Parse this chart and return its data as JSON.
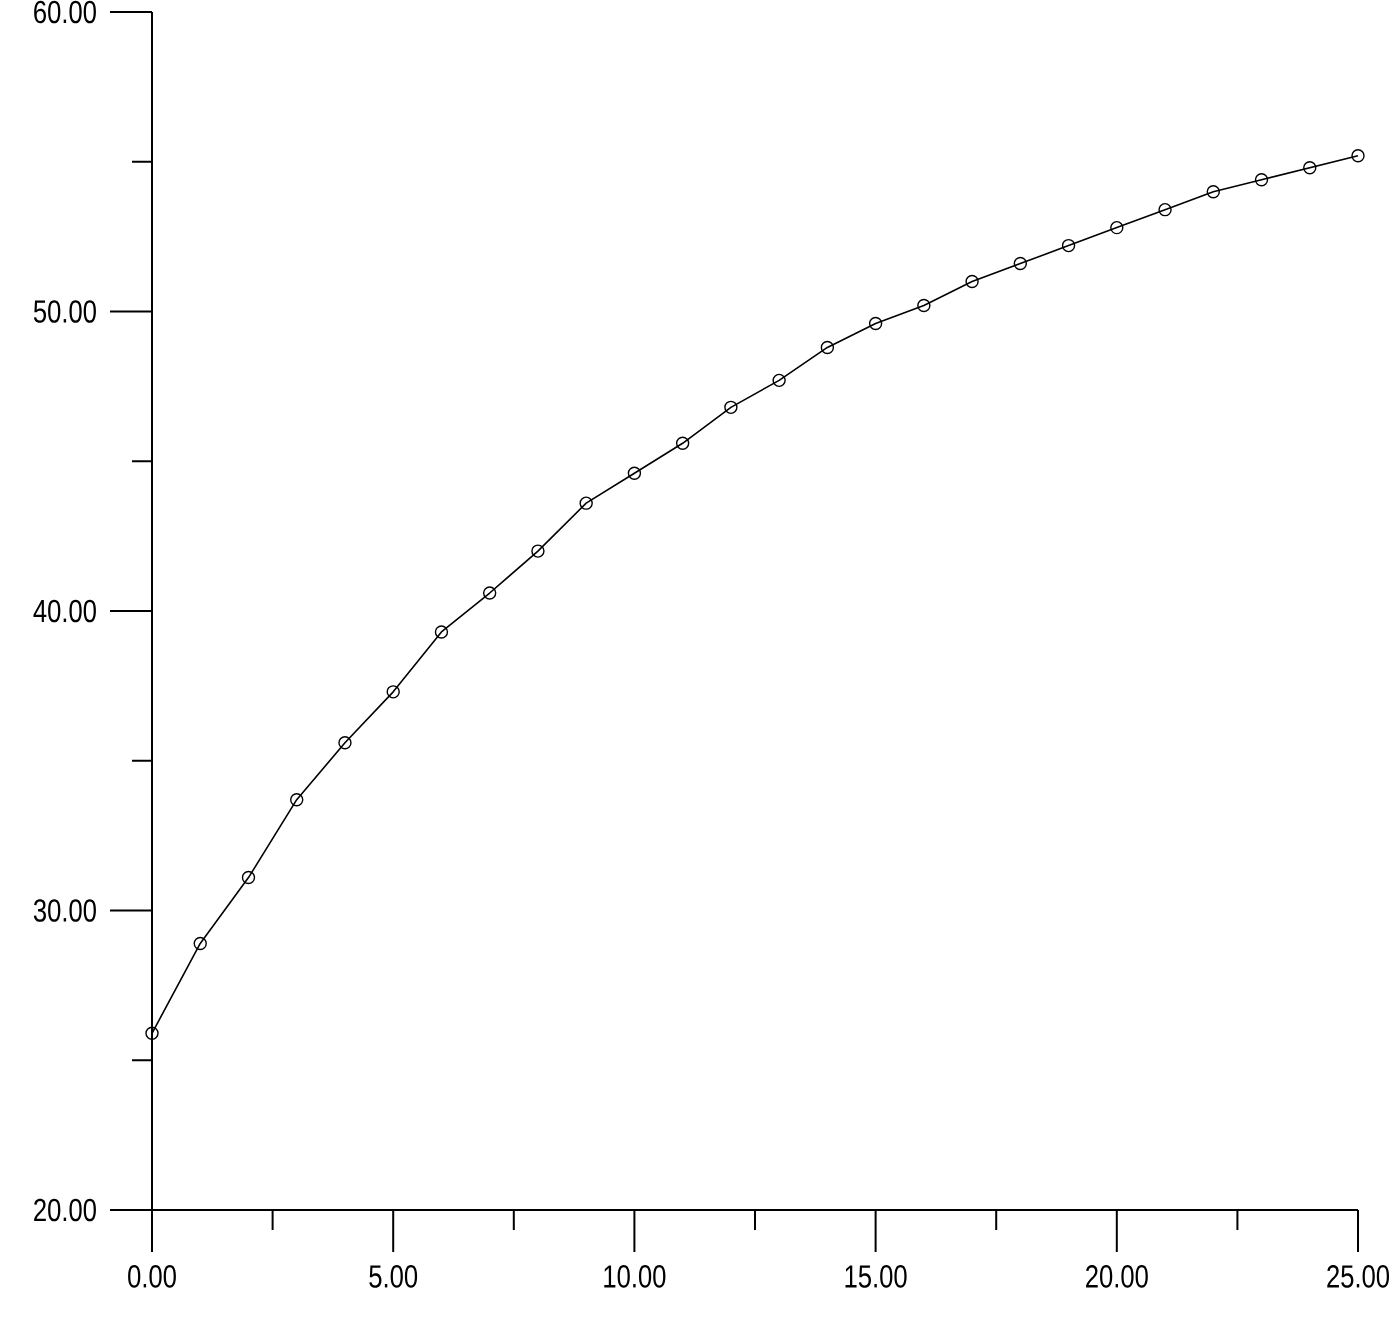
{
  "chart_data": {
    "type": "line",
    "x": [
      0,
      1,
      2,
      3,
      4,
      5,
      6,
      7,
      8,
      9,
      10,
      11,
      12,
      13,
      14,
      15,
      16,
      17,
      18,
      19,
      20,
      21,
      22,
      23,
      24,
      25
    ],
    "series": [
      {
        "color": "#000000",
        "values": [
          25.9,
          28.9,
          31.1,
          33.7,
          35.6,
          37.3,
          39.3,
          40.6,
          42.0,
          43.6,
          44.6,
          45.6,
          46.8,
          47.7,
          48.8,
          49.6,
          50.2,
          51.0,
          51.6,
          52.2,
          52.8,
          53.4,
          54.0,
          54.4,
          54.8,
          55.2
        ]
      }
    ],
    "xlim": [
      0,
      25
    ],
    "ylim": [
      20,
      60
    ],
    "xticks": [
      {
        "value": 0,
        "label": "0.00"
      },
      {
        "value": 2.5,
        "label": null
      },
      {
        "value": 5,
        "label": "5.00"
      },
      {
        "value": 7.5,
        "label": null
      },
      {
        "value": 10,
        "label": "10.00"
      },
      {
        "value": 12.5,
        "label": null
      },
      {
        "value": 15,
        "label": "15.00"
      },
      {
        "value": 17.5,
        "label": null
      },
      {
        "value": 20,
        "label": "20.00"
      },
      {
        "value": 22.5,
        "label": null
      },
      {
        "value": 25,
        "label": "25.00"
      }
    ],
    "yticks": [
      {
        "value": 20,
        "label": "20.00"
      },
      {
        "value": 25,
        "label": null
      },
      {
        "value": 30,
        "label": "30.00"
      },
      {
        "value": 35,
        "label": null
      },
      {
        "value": 40,
        "label": "40.00"
      },
      {
        "value": 45,
        "label": null
      },
      {
        "value": 50,
        "label": "50.00"
      },
      {
        "value": 55,
        "label": null
      },
      {
        "value": 60,
        "label": "60.00"
      }
    ],
    "marker": "circle",
    "line_style": "solid"
  }
}
